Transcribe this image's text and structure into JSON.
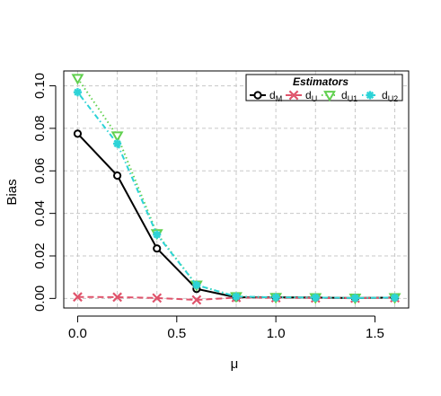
{
  "chart_data": {
    "type": "line",
    "title": "",
    "xlabel": "μ",
    "ylabel": "Bias",
    "xlim": [
      -0.07,
      1.67
    ],
    "ylim": [
      -0.0045,
      0.107
    ],
    "xticks": [
      0.0,
      0.5,
      1.0,
      1.5
    ],
    "xtick_labels": [
      "0.0",
      "0.5",
      "1.0",
      "1.5"
    ],
    "yticks": [
      0.0,
      0.02,
      0.04,
      0.06,
      0.08,
      0.1
    ],
    "ytick_labels": [
      "0.00",
      "0.02",
      "0.04",
      "0.06",
      "0.08",
      "0.10"
    ],
    "grid": true,
    "legend": {
      "title": "Estimators",
      "placement": "top-right",
      "entries": [
        {
          "main": "d",
          "sub": "M"
        },
        {
          "main": "d",
          "sub": "U"
        },
        {
          "main": "d",
          "sub": "U1"
        },
        {
          "main": "d",
          "sub": "U2"
        }
      ]
    },
    "x": [
      0.0,
      0.2,
      0.4,
      0.6,
      0.8,
      1.0,
      1.2,
      1.4,
      1.6
    ],
    "series": [
      {
        "name": "dM",
        "color": "#000000",
        "marker": "circle",
        "line": "solid",
        "values": [
          0.0775,
          0.0578,
          0.0235,
          0.0045,
          0.0005,
          0.0005,
          0.0004,
          0.0002,
          0.0004
        ]
      },
      {
        "name": "dU",
        "color": "#DF536B",
        "marker": "cross",
        "line": "dashed",
        "values": [
          0.0007,
          0.0006,
          0.0002,
          -0.0007,
          0.0004,
          0.0003,
          0.0002,
          0.0001,
          0.0003
        ]
      },
      {
        "name": "dU1",
        "color": "#61D04F",
        "marker": "triangle-down",
        "line": "dotted",
        "values": [
          0.1035,
          0.0765,
          0.0305,
          0.0063,
          0.0009,
          0.0005,
          0.0004,
          0.0002,
          0.0004
        ]
      },
      {
        "name": "dU2",
        "color": "#2DD3D7",
        "marker": "asterisk",
        "line": "dotdash",
        "values": [
          0.097,
          0.0728,
          0.03,
          0.0063,
          0.0009,
          0.0005,
          0.0004,
          0.0002,
          0.0004
        ]
      }
    ]
  }
}
